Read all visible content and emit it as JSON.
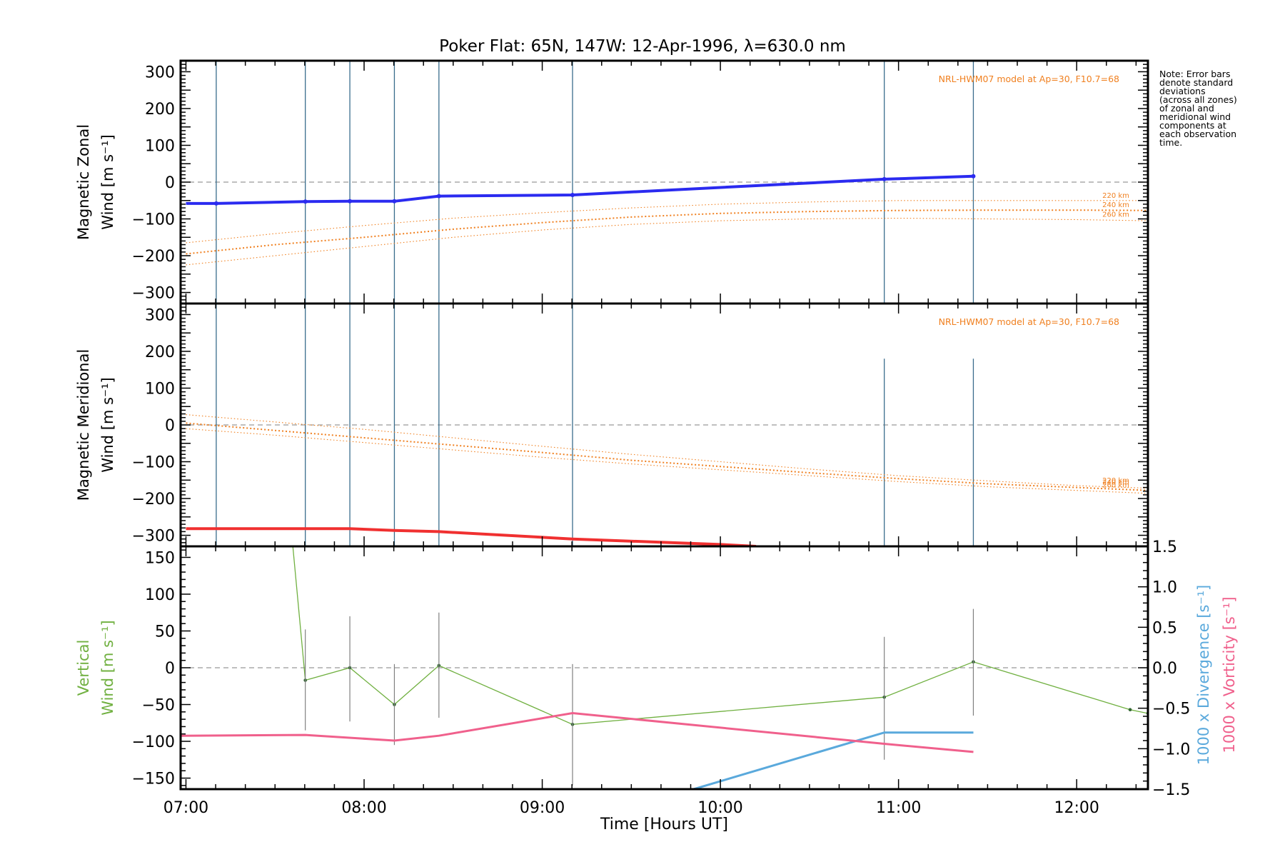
{
  "title": "Poker Flat: 65N, 147W: 12-Apr-1996, λ=630.0 nm",
  "note": [
    "Note: Error bars",
    "denote standard",
    "deviations",
    "(across all zones)",
    "of zonal and",
    "meridional wind",
    "components at",
    "each observation",
    "time."
  ],
  "colors": {
    "zonal": "#2b2bf0",
    "meridional": "#f03030",
    "model": "#f08020",
    "vertical": "#70b040",
    "divergence": "#5aa9dc",
    "vorticity": "#f0608c",
    "obsline": "#3a6d8c",
    "errorbar": "#808080"
  },
  "chart_data": [
    {
      "type": "line",
      "id": "zonal",
      "ylabel_lines": [
        "Magnetic Zonal",
        "Wind [m s⁻¹]"
      ],
      "ylim": [
        -330,
        330
      ],
      "yticks": [
        300,
        200,
        100,
        0,
        -100,
        -200,
        -300
      ],
      "model_label": "NRL-HWM07 model at Ap=30, F10.7=68",
      "observation_times": [
        7.17,
        7.67,
        7.92,
        8.17,
        8.42,
        9.17,
        10.92,
        11.42
      ],
      "series": [
        {
          "name": "Zonal wind",
          "x": [
            7.0,
            7.17,
            7.67,
            7.92,
            8.17,
            8.42,
            9.17,
            10.92,
            11.42
          ],
          "values": [
            -58,
            -58,
            -53,
            -52,
            -52,
            -38,
            -35,
            8,
            16
          ]
        },
        {
          "name": "220 km",
          "x": [
            7.0,
            7.5,
            8.0,
            8.5,
            9.0,
            9.5,
            10.0,
            10.5,
            11.0,
            11.5,
            12.0,
            12.4
          ],
          "values": [
            -165,
            -140,
            -118,
            -98,
            -83,
            -70,
            -60,
            -54,
            -50,
            -50,
            -50,
            -50
          ]
        },
        {
          "name": "240 km",
          "x": [
            7.0,
            7.5,
            8.0,
            8.5,
            9.0,
            9.5,
            10.0,
            10.5,
            11.0,
            11.5,
            12.0,
            12.4
          ],
          "values": [
            -195,
            -170,
            -150,
            -128,
            -110,
            -95,
            -85,
            -80,
            -77,
            -76,
            -76,
            -77
          ]
        },
        {
          "name": "260 km",
          "x": [
            7.0,
            7.5,
            8.0,
            8.5,
            9.0,
            9.5,
            10.0,
            10.5,
            11.0,
            11.5,
            12.0,
            12.4
          ],
          "values": [
            -225,
            -200,
            -175,
            -150,
            -130,
            -115,
            -105,
            -100,
            -98,
            -100,
            -102,
            -105
          ]
        }
      ],
      "model_altitudes": [
        "220 km",
        "240 km",
        "260 km"
      ]
    },
    {
      "type": "line",
      "id": "meridional",
      "ylabel_lines": [
        "Magnetic Meridional",
        "Wind [m s⁻¹]"
      ],
      "ylim": [
        -330,
        330
      ],
      "yticks": [
        300,
        200,
        100,
        0,
        -100,
        -200,
        -300
      ],
      "model_label": "NRL-HWM07 model at Ap=30, F10.7=68",
      "observation_times": [
        7.17,
        7.67,
        7.92,
        8.17,
        8.42,
        9.17,
        10.92,
        11.42
      ],
      "series": [
        {
          "name": "Meridional wind",
          "x": [
            7.0,
            7.17,
            7.67,
            7.92,
            8.17,
            8.42,
            9.17,
            10.0,
            10.2
          ],
          "values": [
            -282,
            -282,
            -282,
            -282,
            -287,
            -290,
            -310,
            -325,
            -330
          ]
        },
        {
          "name": "220 km",
          "x": [
            7.0,
            7.5,
            8.0,
            8.5,
            9.0,
            9.5,
            10.0,
            10.5,
            11.0,
            11.5,
            12.0,
            12.4
          ],
          "values": [
            28,
            8,
            -12,
            -35,
            -58,
            -80,
            -100,
            -120,
            -138,
            -152,
            -165,
            -172
          ]
        },
        {
          "name": "240 km",
          "x": [
            7.0,
            7.5,
            8.0,
            8.5,
            9.0,
            9.5,
            10.0,
            10.5,
            11.0,
            11.5,
            12.0,
            12.4
          ],
          "values": [
            5,
            -15,
            -35,
            -55,
            -75,
            -96,
            -113,
            -130,
            -146,
            -160,
            -170,
            -178
          ]
        },
        {
          "name": "260 km",
          "x": [
            7.0,
            7.5,
            8.0,
            8.5,
            9.0,
            9.5,
            10.0,
            10.5,
            11.0,
            11.5,
            12.0,
            12.4
          ],
          "values": [
            -10,
            -28,
            -48,
            -68,
            -88,
            -106,
            -122,
            -138,
            -154,
            -168,
            -178,
            -186
          ]
        }
      ],
      "model_altitudes": [
        "220 km",
        "240 km",
        "260 km"
      ]
    },
    {
      "type": "line",
      "id": "vertical",
      "ylabel_lines": [
        "Vertical",
        "Wind [m s⁻¹]"
      ],
      "ylim": [
        -165,
        165
      ],
      "yticks": [
        150,
        100,
        50,
        0,
        -50,
        -100,
        -150
      ],
      "y2lim": [
        -1.5,
        1.5
      ],
      "y2ticks": [
        1.5,
        1.0,
        0.5,
        0.0,
        -0.5,
        -1.0,
        -1.5
      ],
      "y2labels": [
        "1000 x Divergence [s⁻¹]",
        "1000 x Vorticity [s⁻¹]"
      ],
      "xlabel": "Time [Hours UT]",
      "xlim": [
        6.97,
        12.4
      ],
      "xticks": [
        7,
        8,
        9,
        10,
        11,
        12
      ],
      "xtick_labels": [
        "07:00",
        "08:00",
        "09:00",
        "10:00",
        "11:00",
        "12:00"
      ],
      "series": [
        {
          "name": "Vertical wind",
          "x": [
            7.6,
            7.67,
            7.92,
            8.17,
            8.42,
            9.17,
            10.92,
            11.42,
            12.3,
            12.4
          ],
          "values": [
            165,
            -17,
            0,
            -50,
            3,
            -77,
            -40,
            8,
            -57,
            -62
          ]
        },
        {
          "name": "Vertical wind error",
          "x": [
            7.67,
            7.92,
            8.17,
            8.42,
            9.17,
            10.92,
            11.42
          ],
          "lower": [
            -85,
            -73,
            -105,
            -68,
            -160,
            -125,
            -65
          ],
          "upper": [
            52,
            70,
            5,
            75,
            5,
            42,
            80
          ]
        },
        {
          "name": "1000 x Divergence",
          "axis": "right",
          "x": [
            9.85,
            10.92,
            11.42
          ],
          "values": [
            -1.5,
            -0.8,
            -0.8
          ]
        },
        {
          "name": "1000 x Vorticity",
          "axis": "right",
          "x": [
            6.97,
            7.67,
            8.17,
            8.42,
            9.17,
            10.92,
            11.42
          ],
          "values": [
            -0.84,
            -0.83,
            -0.9,
            -0.84,
            -0.56,
            -0.94,
            -1.04
          ]
        }
      ]
    }
  ]
}
